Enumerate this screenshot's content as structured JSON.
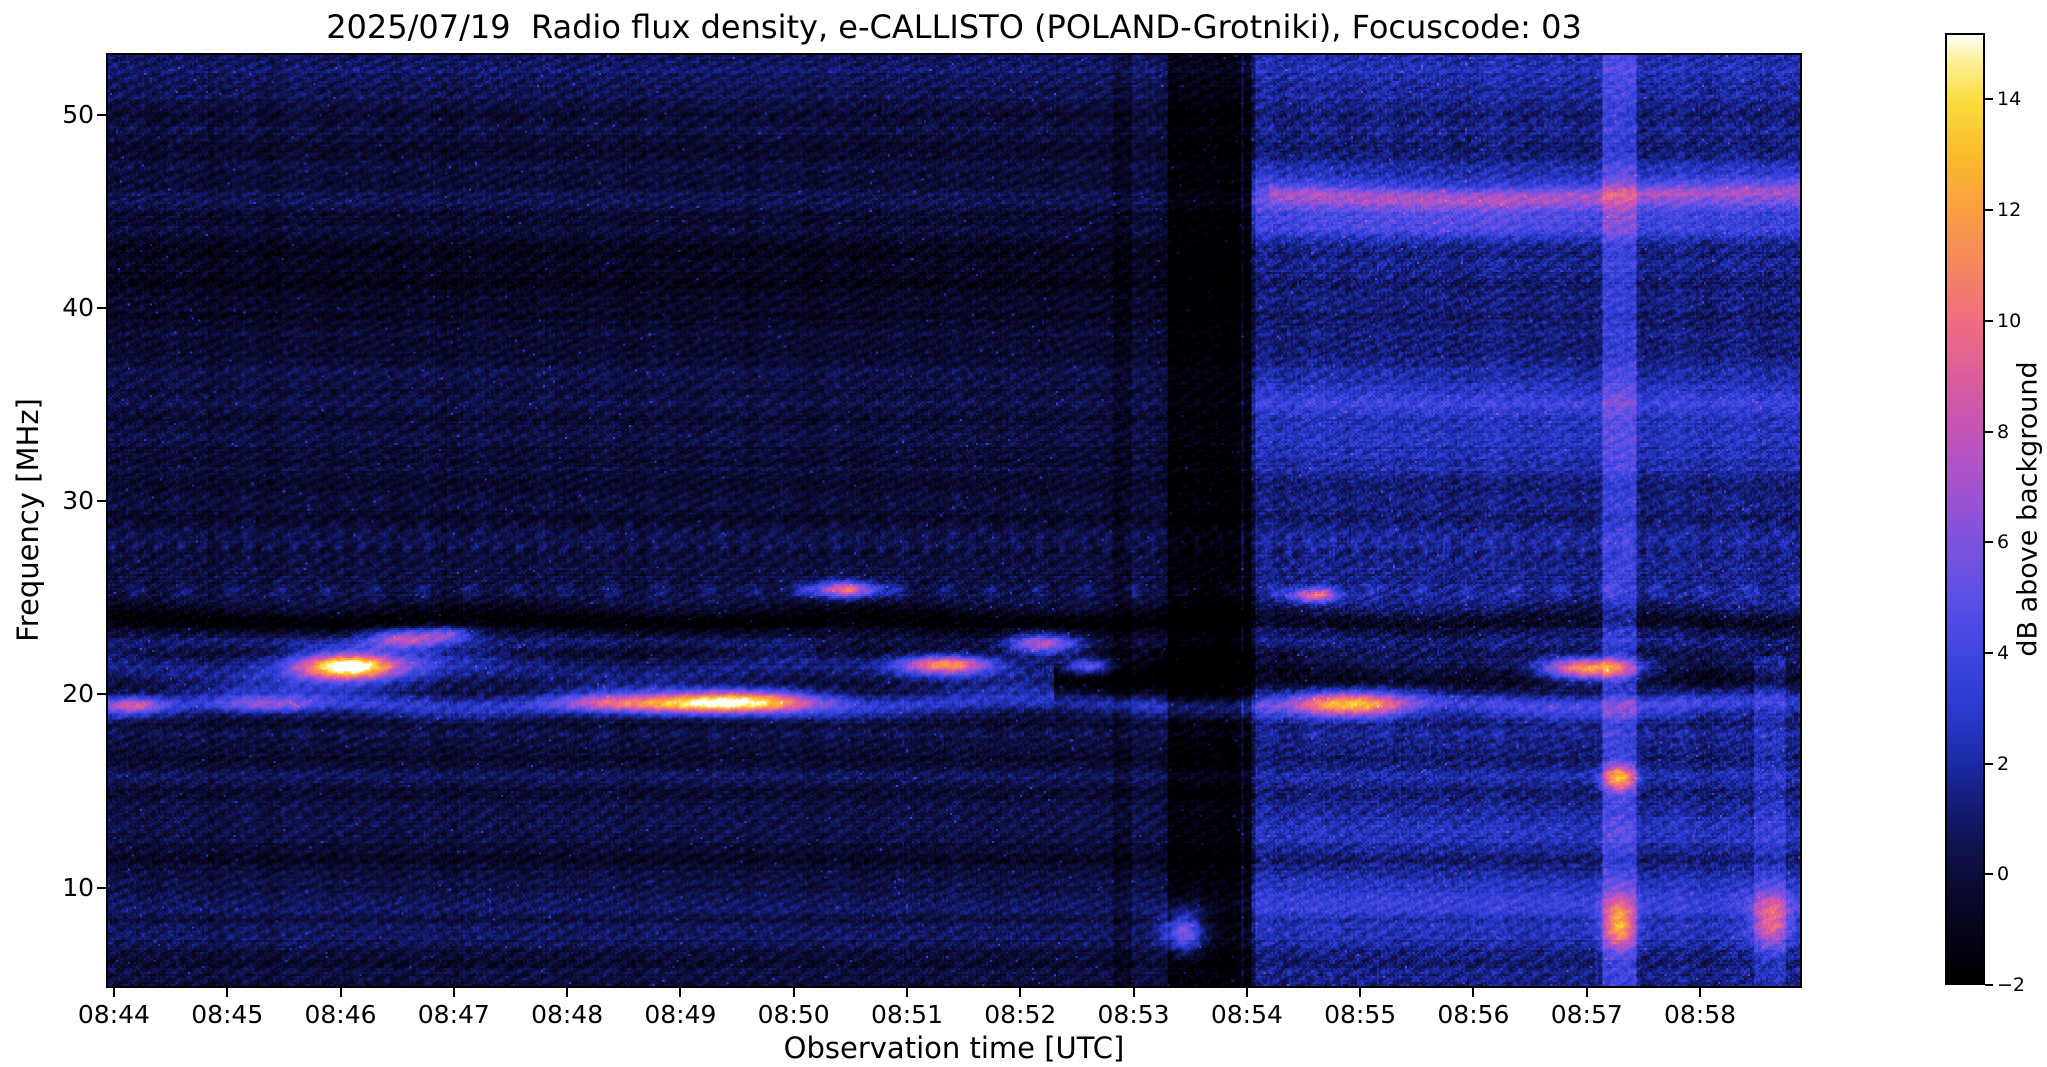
{
  "figure": {
    "title": "2025/07/19  Radio flux density, e-CALLISTO (POLAND-Grotniki), Focuscode: 03",
    "xlabel": "Observation time [UTC]",
    "ylabel": "Frequency [MHz]",
    "colorbar_label": "dB above background",
    "date": "2025/07/19",
    "station": "POLAND-Grotniki",
    "focuscode": "03",
    "background_color": "#ffffff"
  },
  "chart_data": {
    "type": "heatmap",
    "title": "2025/07/19  Radio flux density, e-CALLISTO (POLAND-Grotniki), Focuscode: 03",
    "xlabel": "Observation time [UTC]",
    "ylabel": "Frequency [MHz]",
    "x_range_utc": [
      "08:43:56",
      "08:58:54"
    ],
    "time_axis": {
      "start_min": 43.93,
      "end_min": 58.9
    },
    "y_range_mhz": [
      4.8,
      53.2
    ],
    "value_range_db": [
      -2,
      15.2
    ],
    "grid": false,
    "legend_position": "colorbar-right",
    "xticks": [
      {
        "m": 44,
        "label": "08:44"
      },
      {
        "m": 45,
        "label": "08:45"
      },
      {
        "m": 46,
        "label": "08:46"
      },
      {
        "m": 47,
        "label": "08:47"
      },
      {
        "m": 48,
        "label": "08:48"
      },
      {
        "m": 49,
        "label": "08:49"
      },
      {
        "m": 50,
        "label": "08:50"
      },
      {
        "m": 51,
        "label": "08:51"
      },
      {
        "m": 52,
        "label": "08:52"
      },
      {
        "m": 53,
        "label": "08:53"
      },
      {
        "m": 54,
        "label": "08:54"
      },
      {
        "m": 55,
        "label": "08:55"
      },
      {
        "m": 56,
        "label": "08:56"
      },
      {
        "m": 57,
        "label": "08:57"
      },
      {
        "m": 58,
        "label": "08:58"
      }
    ],
    "yticks": [
      {
        "f": 10,
        "label": "10"
      },
      {
        "f": 20,
        "label": "20"
      },
      {
        "f": 30,
        "label": "30"
      },
      {
        "f": 40,
        "label": "40"
      },
      {
        "f": 50,
        "label": "50"
      }
    ],
    "colorbar": {
      "label": "dB above background",
      "ticks": [
        {
          "v": 14,
          "label": "14"
        },
        {
          "v": 12,
          "label": "12"
        },
        {
          "v": 10,
          "label": "10"
        },
        {
          "v": 8,
          "label": "8"
        },
        {
          "v": 6,
          "label": "6"
        },
        {
          "v": 4,
          "label": "4"
        },
        {
          "v": 2,
          "label": "2"
        },
        {
          "v": 0,
          "label": "0"
        },
        {
          "v": -2,
          "label": "−2"
        }
      ]
    },
    "colormap_stops": [
      [
        -2.0,
        "#000003"
      ],
      [
        -1.0,
        "#06051c"
      ],
      [
        0.0,
        "#0c0d3a"
      ],
      [
        1.0,
        "#131a6a"
      ],
      [
        2.0,
        "#1c2ba6"
      ],
      [
        3.0,
        "#2b3bd0"
      ],
      [
        4.0,
        "#4247e2"
      ],
      [
        5.0,
        "#5c50e6"
      ],
      [
        6.0,
        "#7e52dd"
      ],
      [
        7.0,
        "#a353cf"
      ],
      [
        8.0,
        "#c454b8"
      ],
      [
        9.0,
        "#dd5d9c"
      ],
      [
        10.0,
        "#ee6f81"
      ],
      [
        11.0,
        "#f68660"
      ],
      [
        12.0,
        "#fa9e42"
      ],
      [
        13.0,
        "#fcbb2e"
      ],
      [
        14.0,
        "#fadc3c"
      ],
      [
        14.8,
        "#fdf3a2"
      ],
      [
        15.2,
        "#fefefb"
      ]
    ],
    "region_boost": {
      "tmin": 54.05,
      "amp": 1.25
    },
    "bands": [
      {
        "fc": 19.5,
        "sf": 0.45,
        "amp": 3.0,
        "wavy": 0.3
      },
      {
        "fc": 21.2,
        "sf": 0.5,
        "amp": 1.6,
        "tmax": 52.3,
        "wavy": 0.3
      },
      {
        "fc": 20.8,
        "sf": 0.7,
        "amp": -2.2,
        "tmin": 52.3,
        "wavy": 0.4
      },
      {
        "fc": 23.8,
        "sf": 0.55,
        "amp": -1.9,
        "wavy": 0.3
      },
      {
        "fc": 22.6,
        "sf": 0.4,
        "amp": 1.1,
        "tmax": 50.2,
        "wavy": 0.25
      },
      {
        "fc": 25.35,
        "sf": 0.28,
        "amp": 1.7,
        "dash": 0.42
      },
      {
        "fc": 27.6,
        "sf": 0.35,
        "amp": 1.3,
        "dash": 0.2
      },
      {
        "fc": 28.7,
        "sf": 0.3,
        "amp": 0.9,
        "dash": 0.26
      },
      {
        "fc": 17.9,
        "sf": 0.3,
        "amp": 0.8,
        "dash": 0.33
      },
      {
        "fc": 15.6,
        "sf": 0.3,
        "amp": 0.55
      },
      {
        "fc": 13.2,
        "sf": 0.45,
        "amp": 0.9
      },
      {
        "fc": 9.3,
        "sf": 0.65,
        "amp": 1.0
      },
      {
        "fc": 9.3,
        "sf": 0.9,
        "amp": 1.5,
        "tmin": 54.05
      },
      {
        "fc": 7.6,
        "sf": 0.4,
        "amp": 0.9
      },
      {
        "fc": 12.6,
        "sf": 0.7,
        "amp": 1.0,
        "tmin": 54.05
      },
      {
        "fc": 45.8,
        "sf": 1.1,
        "amp": 0.6,
        "tmax": 54.05
      },
      {
        "fc": 46.0,
        "sf": 1.0,
        "amp": 3.8,
        "tmin": 54.05,
        "dip": {
          "c": 55.9,
          "w": 1.2,
          "d": 0.5
        }
      },
      {
        "fc": 46.2,
        "sf": 0.35,
        "amp": 2.2,
        "tmin": 54.2,
        "dip": {
          "c": 55.9,
          "w": 1.2,
          "d": 0.5
        }
      },
      {
        "fc": 44.3,
        "sf": 0.5,
        "amp": 1.2,
        "tmin": 54.05
      },
      {
        "fc": 35.2,
        "sf": 1.1,
        "amp": 2.0,
        "tmin": 54.05
      },
      {
        "fc": 32.4,
        "sf": 0.8,
        "amp": 1.1,
        "tmin": 54.05
      },
      {
        "fc": 42.5,
        "sf": 1.7,
        "amp": -0.9,
        "tmax": 54.05
      },
      {
        "fc": 52.3,
        "sf": 0.8,
        "amp": 0.9
      },
      {
        "fc": 49.6,
        "sf": 0.4,
        "amp": 0.5,
        "dash": 0.5
      },
      {
        "fc": 30.1,
        "sf": 0.25,
        "amp": 0.7,
        "dash": 0.3
      },
      {
        "fc": 36.3,
        "sf": 0.5,
        "amp": 0.6,
        "tmax": 54.05
      }
    ],
    "blobs": [
      {
        "t": 44.15,
        "f": 19.4,
        "st": 0.18,
        "sf": 0.3,
        "amp": 6
      },
      {
        "t": 45.35,
        "f": 19.4,
        "st": 0.3,
        "sf": 0.3,
        "amp": 4.5
      },
      {
        "t": 46.05,
        "f": 21.4,
        "st": 0.28,
        "sf": 0.45,
        "amp": 13
      },
      {
        "t": 46.1,
        "f": 21.4,
        "st": 0.6,
        "sf": 0.9,
        "amp": 3.5
      },
      {
        "t": 46.55,
        "f": 22.9,
        "st": 0.22,
        "sf": 0.35,
        "amp": 7
      },
      {
        "t": 46.95,
        "f": 23.1,
        "st": 0.15,
        "sf": 0.3,
        "amp": 5
      },
      {
        "t": 48.35,
        "f": 19.5,
        "st": 0.35,
        "sf": 0.35,
        "amp": 5
      },
      {
        "t": 49.0,
        "f": 19.4,
        "st": 0.4,
        "sf": 0.35,
        "amp": 7
      },
      {
        "t": 49.6,
        "f": 19.6,
        "st": 0.45,
        "sf": 0.4,
        "amp": 11
      },
      {
        "t": 50.45,
        "f": 25.4,
        "st": 0.22,
        "sf": 0.3,
        "amp": 9
      },
      {
        "t": 51.35,
        "f": 21.5,
        "st": 0.28,
        "sf": 0.35,
        "amp": 11
      },
      {
        "t": 52.2,
        "f": 22.6,
        "st": 0.22,
        "sf": 0.4,
        "amp": 8
      },
      {
        "t": 52.6,
        "f": 21.4,
        "st": 0.15,
        "sf": 0.3,
        "amp": 6
      },
      {
        "t": 54.6,
        "f": 25.1,
        "st": 0.15,
        "sf": 0.25,
        "amp": 8
      },
      {
        "t": 54.95,
        "f": 19.4,
        "st": 0.35,
        "sf": 0.45,
        "amp": 10
      },
      {
        "t": 57.05,
        "f": 21.3,
        "st": 0.3,
        "sf": 0.4,
        "amp": 13
      },
      {
        "t": 57.3,
        "f": 15.6,
        "st": 0.1,
        "sf": 0.5,
        "amp": 9
      },
      {
        "t": 57.3,
        "f": 8.0,
        "st": 0.1,
        "sf": 0.9,
        "amp": 8
      },
      {
        "t": 53.45,
        "f": 7.6,
        "st": 0.12,
        "sf": 0.8,
        "amp": 7
      },
      {
        "t": 58.65,
        "f": 8.2,
        "st": 0.12,
        "sf": 1.0,
        "amp": 6
      }
    ],
    "columns": [
      {
        "t0": 53.3,
        "t1": 53.95,
        "amp": -1.8
      },
      {
        "t0": 53.98,
        "t1": 54.08,
        "amp": -1.6
      },
      {
        "t0": 57.15,
        "t1": 57.45,
        "amp": 2.2
      },
      {
        "t0": 58.5,
        "t1": 58.78,
        "amp": 1.2,
        "fmax": 22
      },
      {
        "t0": 52.82,
        "t1": 52.98,
        "amp": -0.7
      }
    ],
    "notable_features": [
      "Bright ionospheric/RFI emission bands between 18 and 26 MHz across the whole record",
      "Intense saturated burst near 08:46 at ~21.4 MHz (~14 dB)",
      "Bright elongated patch 08:49-08:50 at ~19.5 MHz",
      "Bright spots near 08:51.4 and 08:52.2 between 21 and 23 MHz",
      "Background level steps up at 08:54; right portion of spectrogram is brighter",
      "Strong pink band 44-47 MHz after 08:54",
      "Dark vertical gap near 08:53.5",
      "Bright vertical RFI stripe near 08:57.3 with hot spots at ~15.6 and ~8 MHz",
      "Bright spot at 08:57 near 21.3 MHz"
    ]
  }
}
